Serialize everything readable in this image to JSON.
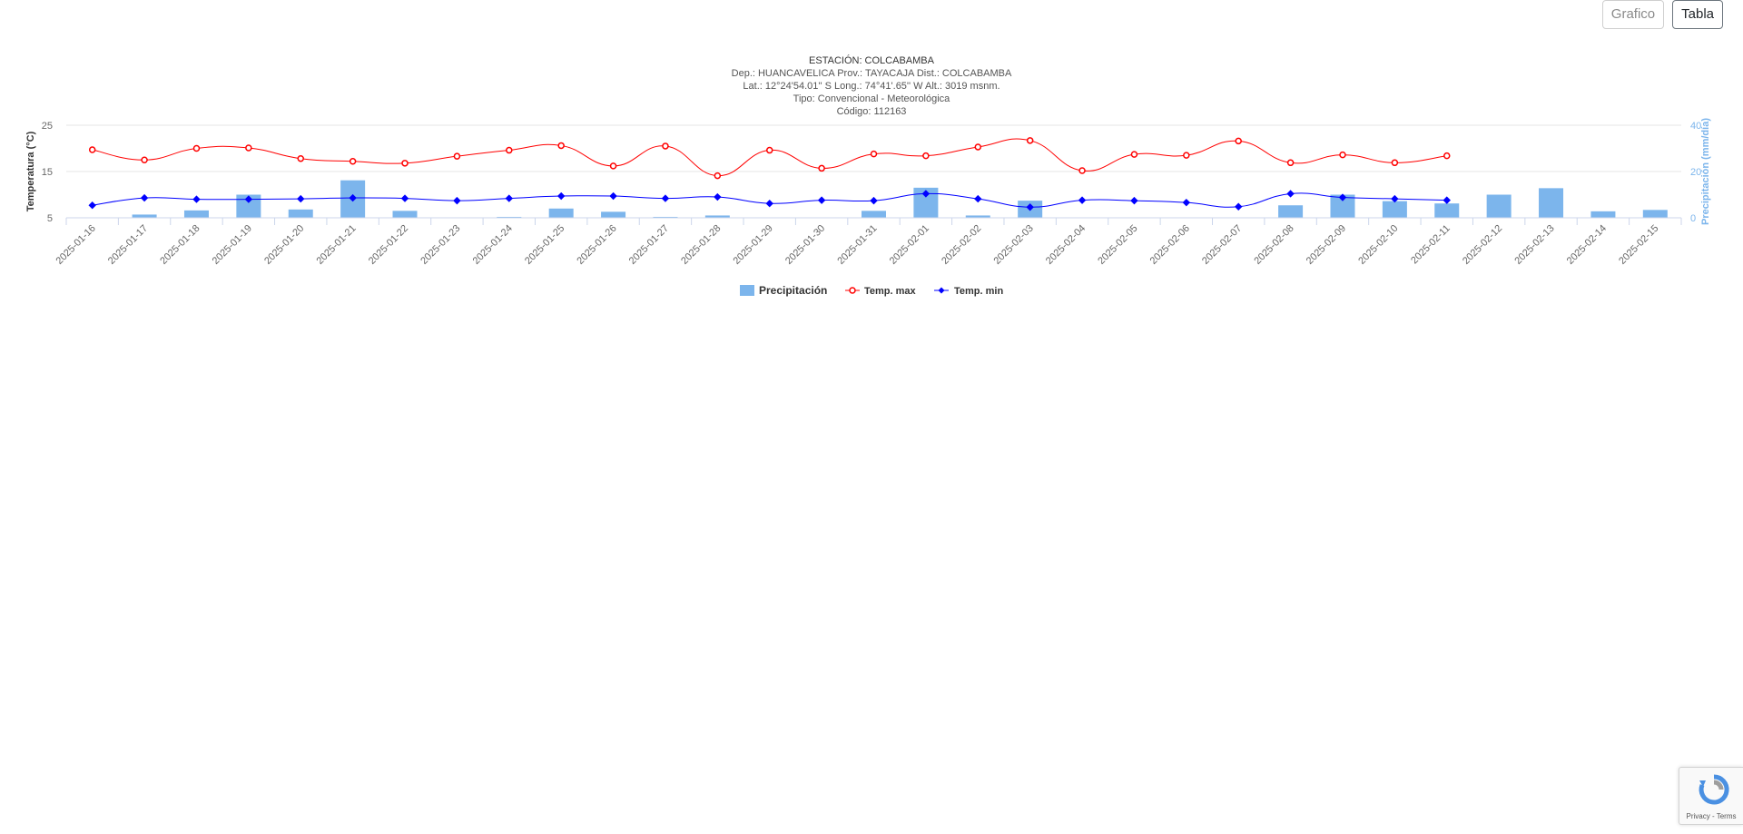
{
  "toolbar": {
    "grafico_label": "Grafico",
    "tabla_label": "Tabla"
  },
  "recaptcha": {
    "links": "Privacy - Terms",
    "icon": "recaptcha-icon"
  },
  "colors": {
    "precip": "#7cb5ec",
    "tmax": "#ff0000",
    "tmin": "#0000ff"
  },
  "chart_data": {
    "type": "line",
    "title": "ESTACIÓN: COLCABAMBA",
    "subtitle": [
      "Dep.: HUANCAVELICA Prov.: TAYACAJA Dist.: COLCABAMBA",
      "Lat.: 12°24'54.01'' S Long.: 74°41'.65'' W Alt.: 3019 msnm.",
      "Tipo: Convencional - Meteorológica",
      "Código: 112163"
    ],
    "ylabel": "Temperatura (°C)",
    "y2label": "Precipitación (mm/día)",
    "ylim": [
      5,
      25
    ],
    "y2lim": [
      0,
      40
    ],
    "yticks": [
      5,
      15,
      25
    ],
    "y2ticks": [
      0,
      20,
      40
    ],
    "grid": true,
    "legend_position": "bottom",
    "categories": [
      "2025-01-16",
      "2025-01-17",
      "2025-01-18",
      "2025-01-19",
      "2025-01-20",
      "2025-01-21",
      "2025-01-22",
      "2025-01-23",
      "2025-01-24",
      "2025-01-25",
      "2025-01-26",
      "2025-01-27",
      "2025-01-28",
      "2025-01-29",
      "2025-01-30",
      "2025-01-31",
      "2025-02-01",
      "2025-02-02",
      "2025-02-03",
      "2025-02-04",
      "2025-02-05",
      "2025-02-06",
      "2025-02-07",
      "2025-02-08",
      "2025-02-09",
      "2025-02-10",
      "2025-02-11",
      "2025-02-12",
      "2025-02-13",
      "2025-02-14",
      "2025-02-15"
    ],
    "series": [
      {
        "name": "Precipitación",
        "type": "bar",
        "axis": "y2",
        "values": [
          0,
          1.4,
          3.2,
          10.0,
          3.6,
          16.2,
          3.0,
          0,
          0.4,
          4.0,
          2.6,
          0.4,
          1.0,
          0,
          0,
          3.0,
          13.0,
          1.0,
          7.4,
          0,
          0,
          0,
          0,
          5.4,
          10.0,
          7.2,
          6.2,
          10.0,
          12.8,
          2.8,
          3.4
        ]
      },
      {
        "name": "Temp. max",
        "type": "line",
        "axis": "y",
        "values": [
          19.7,
          17.5,
          20.0,
          20.1,
          17.8,
          17.2,
          16.8,
          18.3,
          19.6,
          20.6,
          16.2,
          20.5,
          14.1,
          19.6,
          15.7,
          18.8,
          18.4,
          20.3,
          21.7,
          15.2,
          18.7,
          18.5,
          21.6,
          16.9,
          18.6,
          16.9,
          18.4,
          null,
          null,
          null,
          null
        ]
      },
      {
        "name": "Temp. min",
        "type": "line",
        "axis": "y",
        "values": [
          7.7,
          9.3,
          9.0,
          9.0,
          9.1,
          9.3,
          9.2,
          8.7,
          9.2,
          9.7,
          9.7,
          9.2,
          9.5,
          8.1,
          8.8,
          8.7,
          10.2,
          9.1,
          7.3,
          8.8,
          8.7,
          8.3,
          7.4,
          10.2,
          9.4,
          9.1,
          8.8,
          null,
          null,
          null,
          null
        ]
      }
    ]
  }
}
